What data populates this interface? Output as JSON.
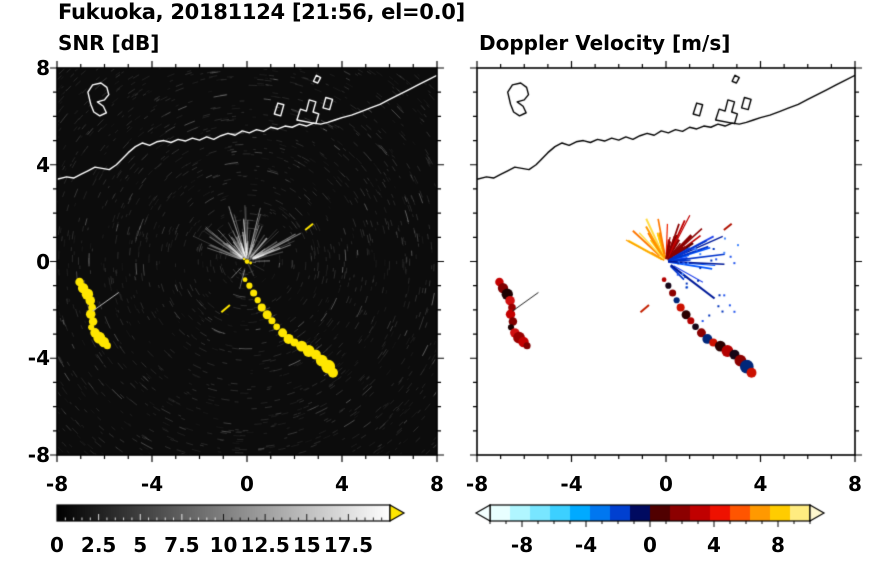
{
  "title": "Fukuoka, 20181124 [21:56, el=0.0]",
  "panels": [
    {
      "id": "snr",
      "title": "SNR [dB]",
      "bg": "#0c0c0c",
      "coast_color": "#ffffff",
      "echo_mode": "snr",
      "show_y_labels": true
    },
    {
      "id": "vel",
      "title": "Doppler Velocity [m/s]",
      "bg": "#ffffff",
      "coast_color": "#000000",
      "echo_mode": "vel",
      "show_y_labels": false
    }
  ],
  "axis": {
    "min": -8,
    "max": 8,
    "major_tick_values": [
      -8,
      -4,
      0,
      4,
      8
    ],
    "minor_tick_step": 1,
    "x_labels": [
      {
        "v": -8,
        "t": "-8"
      },
      {
        "v": -4,
        "t": "-4"
      },
      {
        "v": 0,
        "t": "0"
      },
      {
        "v": 4,
        "t": "4"
      },
      {
        "v": 8,
        "t": "8"
      }
    ],
    "y_labels": [
      {
        "v": 8,
        "t": "8"
      },
      {
        "v": 4,
        "t": "4"
      },
      {
        "v": 0,
        "t": "0"
      },
      {
        "v": -4,
        "t": "-4"
      },
      {
        "v": -8,
        "t": "-8"
      }
    ]
  },
  "colorbars": [
    {
      "id": "snr",
      "min": 0,
      "max": 20,
      "type": "gradient",
      "stops": [
        "#000000",
        "#ffffff"
      ],
      "over_arrow_color": "#ffe600",
      "major_step": 2.5,
      "minor_step": 0.5,
      "labels": [
        {
          "v": 0,
          "t": "0"
        },
        {
          "v": 2.5,
          "t": "2.5"
        },
        {
          "v": 5,
          "t": "5"
        },
        {
          "v": 7.5,
          "t": "7.5"
        },
        {
          "v": 10,
          "t": "10"
        },
        {
          "v": 12.5,
          "t": "12.5"
        },
        {
          "v": 15,
          "t": "15"
        },
        {
          "v": 17.5,
          "t": "17.5"
        }
      ]
    },
    {
      "id": "vel",
      "min": -10,
      "max": 10,
      "type": "segments",
      "segments": [
        "#e8ffff",
        "#b0f6ff",
        "#78e6ff",
        "#3cd0ff",
        "#00aaff",
        "#0077f0",
        "#0040d0",
        "#000a60",
        "#500000",
        "#8c0000",
        "#c00000",
        "#ee1100",
        "#ff5500",
        "#ff9900",
        "#ffcc00",
        "#ffec80"
      ],
      "under_arrow_color": "#f4ffff",
      "over_arrow_color": "#fff8d0",
      "major_step": 4,
      "minor_step": 1,
      "labels": [
        {
          "v": -8,
          "t": "-8"
        },
        {
          "v": -4,
          "t": "-4"
        },
        {
          "v": 0,
          "t": "0"
        },
        {
          "v": 4,
          "t": "4"
        },
        {
          "v": 8,
          "t": "8"
        }
      ]
    }
  ],
  "chart_data": {
    "type": "heatmap",
    "description": "Dual-panel radar PPI display: signal-to-noise ratio (left) and Doppler velocity (right); radar located at origin, coastline of Fukuoka bay at top, ship-echo chains southwest and southeast of radar",
    "station": "Fukuoka",
    "date": "20181124",
    "time": "21:56",
    "elevation_deg": 0.0,
    "axis_range": [
      -8,
      8
    ],
    "radar_origin": [
      0,
      0
    ],
    "snr_scale": {
      "min": 0,
      "max": 20,
      "units": "dB"
    },
    "velocity_scale": {
      "min": -10,
      "max": 10,
      "units": "m/s"
    },
    "coastline": [
      [
        -8,
        3.4
      ],
      [
        -7.6,
        3.5
      ],
      [
        -7.3,
        3.45
      ],
      [
        -7.0,
        3.6
      ],
      [
        -6.7,
        3.75
      ],
      [
        -6.4,
        3.9
      ],
      [
        -6.1,
        3.85
      ],
      [
        -5.8,
        3.8
      ],
      [
        -5.5,
        4.0
      ],
      [
        -5.3,
        4.2
      ],
      [
        -5.0,
        4.5
      ],
      [
        -4.7,
        4.75
      ],
      [
        -4.4,
        4.9
      ],
      [
        -4.1,
        4.8
      ],
      [
        -3.8,
        4.95
      ],
      [
        -3.5,
        5.0
      ],
      [
        -3.2,
        4.92
      ],
      [
        -2.9,
        5.05
      ],
      [
        -2.6,
        4.98
      ],
      [
        -2.3,
        5.1
      ],
      [
        -2.0,
        5.02
      ],
      [
        -1.7,
        5.15
      ],
      [
        -1.4,
        5.05
      ],
      [
        -1.1,
        5.2
      ],
      [
        -0.8,
        5.3
      ],
      [
        -0.5,
        5.22
      ],
      [
        -0.2,
        5.4
      ],
      [
        0.1,
        5.32
      ],
      [
        0.4,
        5.45
      ],
      [
        0.7,
        5.38
      ],
      [
        1.0,
        5.55
      ],
      [
        1.3,
        5.48
      ],
      [
        1.6,
        5.6
      ],
      [
        1.9,
        5.55
      ],
      [
        2.2,
        5.68
      ],
      [
        2.5,
        5.6
      ],
      [
        2.8,
        5.72
      ],
      [
        3.1,
        5.68
      ],
      [
        3.4,
        5.75
      ],
      [
        3.7,
        5.85
      ],
      [
        4.0,
        5.95
      ],
      [
        4.4,
        6.05
      ],
      [
        4.8,
        6.2
      ],
      [
        5.2,
        6.35
      ],
      [
        5.6,
        6.5
      ],
      [
        6.0,
        6.7
      ],
      [
        6.4,
        6.9
      ],
      [
        6.8,
        7.1
      ],
      [
        7.2,
        7.3
      ],
      [
        7.6,
        7.5
      ],
      [
        8,
        7.7
      ]
    ],
    "island": [
      [
        -6.7,
        7.0
      ],
      [
        -6.5,
        7.3
      ],
      [
        -6.15,
        7.38
      ],
      [
        -5.9,
        7.2
      ],
      [
        -5.82,
        6.9
      ],
      [
        -6.0,
        6.68
      ],
      [
        -6.3,
        6.6
      ],
      [
        -6.05,
        6.42
      ],
      [
        -5.92,
        6.15
      ],
      [
        -6.2,
        6.02
      ],
      [
        -6.45,
        6.18
      ],
      [
        -6.58,
        6.5
      ]
    ],
    "piers": [
      [
        [
          1.15,
          6.1
        ],
        [
          1.3,
          6.55
        ],
        [
          1.55,
          6.48
        ],
        [
          1.42,
          6.02
        ]
      ],
      [
        [
          2.1,
          5.85
        ],
        [
          2.25,
          6.3
        ],
        [
          2.5,
          6.22
        ],
        [
          2.62,
          6.68
        ],
        [
          2.9,
          6.6
        ],
        [
          2.78,
          6.18
        ],
        [
          3.02,
          6.1
        ],
        [
          2.9,
          5.7
        ]
      ],
      [
        [
          3.2,
          6.35
        ],
        [
          3.32,
          6.78
        ],
        [
          3.6,
          6.7
        ],
        [
          3.48,
          6.28
        ]
      ],
      [
        [
          2.8,
          7.45
        ],
        [
          2.92,
          7.7
        ],
        [
          3.1,
          7.6
        ],
        [
          2.98,
          7.38
        ]
      ]
    ],
    "echo_color_snr": "#ffe600",
    "echo_chains": [
      {
        "name": "west-arc-echo",
        "points": [
          [
            -7.05,
            -0.85,
            0.18
          ],
          [
            -6.9,
            -1.1,
            0.22
          ],
          [
            -6.72,
            -1.35,
            0.24
          ],
          [
            -6.6,
            -1.62,
            0.2
          ],
          [
            -6.52,
            -1.9,
            0.16
          ],
          [
            -6.58,
            -2.18,
            0.2
          ],
          [
            -6.48,
            -2.48,
            0.18
          ],
          [
            -6.56,
            -2.72,
            0.13
          ],
          [
            -6.4,
            -2.95,
            0.2
          ],
          [
            -6.22,
            -3.15,
            0.25
          ],
          [
            -6.03,
            -3.33,
            0.22
          ],
          [
            -5.88,
            -3.48,
            0.15
          ]
        ],
        "vel_palette": [
          "#c40000",
          "#800000",
          "#1c0000",
          "#d01010",
          "#980000"
        ]
      },
      {
        "name": "southeast-line-echo",
        "points": [
          [
            -0.08,
            -0.75,
            0.1
          ],
          [
            0.1,
            -1.0,
            0.13
          ],
          [
            0.28,
            -1.3,
            0.15
          ],
          [
            0.45,
            -1.6,
            0.13
          ],
          [
            0.62,
            -1.9,
            0.17
          ],
          [
            0.85,
            -2.2,
            0.19
          ],
          [
            1.05,
            -2.45,
            0.15
          ],
          [
            1.25,
            -2.7,
            0.14
          ],
          [
            1.5,
            -2.95,
            0.19
          ],
          [
            1.75,
            -3.2,
            0.21
          ],
          [
            2.0,
            -3.35,
            0.17
          ],
          [
            2.3,
            -3.5,
            0.23
          ],
          [
            2.6,
            -3.7,
            0.25
          ],
          [
            2.9,
            -3.85,
            0.21
          ],
          [
            3.15,
            -4.1,
            0.25
          ],
          [
            3.42,
            -4.35,
            0.29
          ],
          [
            3.62,
            -4.6,
            0.21
          ]
        ],
        "vel_palette": [
          "#b40000",
          "#160516",
          "#8c0000",
          "#00277a",
          "#cc1000",
          "#2a0000"
        ]
      }
    ],
    "dashes": [
      {
        "from": [
          -6.5,
          -2.05
        ],
        "to": [
          -5.4,
          -1.28
        ],
        "snr": "#bbbbbb",
        "vel": "#222222",
        "lw": 1
      },
      {
        "from": [
          -1.08,
          -2.1
        ],
        "to": [
          -0.72,
          -1.8
        ],
        "snr": "#ffe600",
        "vel": "#c42000",
        "lw": 2
      },
      {
        "from": [
          2.45,
          1.3
        ],
        "to": [
          2.78,
          1.56
        ],
        "snr": "#ffe600",
        "vel": "#b01000",
        "lw": 2
      }
    ],
    "snr_fan": {
      "count": 95,
      "up_angle_deg": [
        15,
        165
      ],
      "seed": 11
    },
    "fan_rays_vel": [
      {
        "colors": [
          "#ff9900",
          "#ffc800",
          "#ff7700",
          "#ffdd44"
        ],
        "angle_deg": [
          95,
          158
        ],
        "len": [
          0.6,
          1.8
        ],
        "lw": [
          1.2,
          2.4
        ],
        "count": 15,
        "seed": 21
      },
      {
        "colors": [
          "#c00000",
          "#8b0000",
          "#ee2200",
          "#600000"
        ],
        "angle_deg": [
          34,
          94
        ],
        "len": [
          0.6,
          2.2
        ],
        "lw": [
          1.2,
          3.0
        ],
        "count": 17,
        "seed": 22
      },
      {
        "colors": [
          "#0033cc",
          "#0055ff",
          "#001a99",
          "#2244ee"
        ],
        "angle_deg": [
          -46,
          32
        ],
        "len": [
          0.4,
          2.4
        ],
        "lw": [
          1.0,
          2.2
        ],
        "count": 19,
        "seed": 23
      }
    ],
    "speck_cloud_vel": {
      "count": 34,
      "angle_deg": [
        -60,
        25
      ],
      "radius": [
        0.5,
        3.6
      ],
      "colors": [
        "#2255ee",
        "#4488ff",
        "#0033bb"
      ],
      "seed": 5
    },
    "noise": {
      "seed": 7,
      "speckle_count": 2600,
      "bright_count": 220
    },
    "center_marks": [
      [
        0,
        0,
        0.1
      ],
      [
        0.15,
        -0.06,
        0.06
      ],
      [
        -0.12,
        0.1,
        0.05
      ]
    ]
  }
}
